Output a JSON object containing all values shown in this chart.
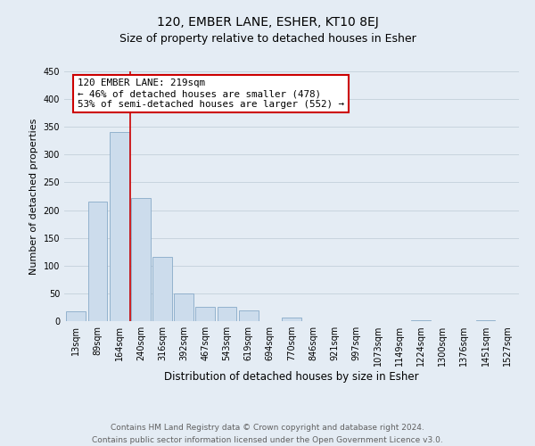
{
  "title": "120, EMBER LANE, ESHER, KT10 8EJ",
  "subtitle": "Size of property relative to detached houses in Esher",
  "xlabel": "Distribution of detached houses by size in Esher",
  "ylabel": "Number of detached properties",
  "bin_labels": [
    "13sqm",
    "89sqm",
    "164sqm",
    "240sqm",
    "316sqm",
    "392sqm",
    "467sqm",
    "543sqm",
    "619sqm",
    "694sqm",
    "770sqm",
    "846sqm",
    "921sqm",
    "997sqm",
    "1073sqm",
    "1149sqm",
    "1224sqm",
    "1300sqm",
    "1376sqm",
    "1451sqm",
    "1527sqm"
  ],
  "bar_values": [
    18,
    215,
    340,
    222,
    115,
    50,
    26,
    25,
    19,
    0,
    7,
    0,
    0,
    0,
    0,
    0,
    2,
    0,
    0,
    2,
    0
  ],
  "bar_color": "#ccdcec",
  "bar_edge_color": "#88aac8",
  "property_line_color": "#cc0000",
  "annotation_text": "120 EMBER LANE: 219sqm\n← 46% of detached houses are smaller (478)\n53% of semi-detached houses are larger (552) →",
  "annotation_box_color": "#ffffff",
  "annotation_box_edge": "#cc0000",
  "ylim": [
    0,
    450
  ],
  "yticks": [
    0,
    50,
    100,
    150,
    200,
    250,
    300,
    350,
    400,
    450
  ],
  "grid_color": "#c8d4de",
  "background_color": "#e4ecf4",
  "footnote": "Contains HM Land Registry data © Crown copyright and database right 2024.\nContains public sector information licensed under the Open Government Licence v3.0.",
  "title_fontsize": 10,
  "subtitle_fontsize": 9,
  "xlabel_fontsize": 8.5,
  "ylabel_fontsize": 8,
  "annotation_fontsize": 7.8,
  "footnote_fontsize": 6.5,
  "tick_fontsize": 7
}
